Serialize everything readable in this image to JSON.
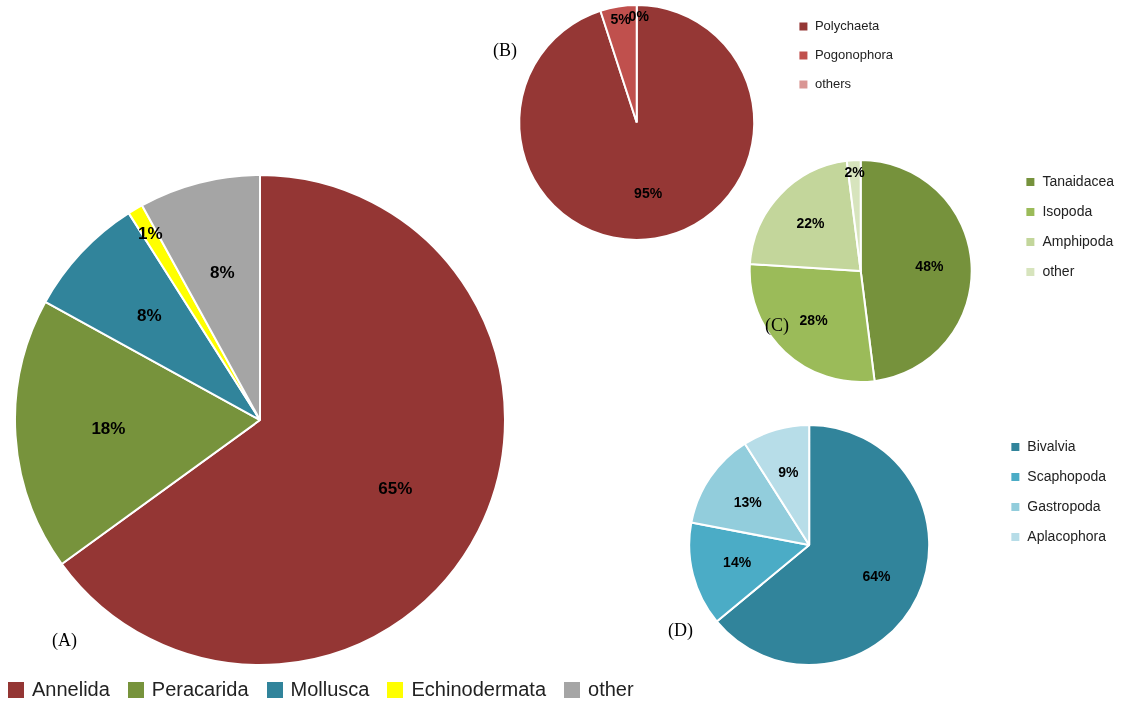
{
  "chart_data": [
    {
      "type": "pie",
      "title": "(A)",
      "categories": [
        "Annelida",
        "Peracarida",
        "Mollusca",
        "Echinodermata",
        "other"
      ],
      "values": [
        65,
        18,
        8,
        1,
        8
      ],
      "colors": [
        "#943634",
        "#77933c",
        "#31849b",
        "#ffff00",
        "#a5a5a5"
      ],
      "value_labels": [
        "65%",
        "18%",
        "8%",
        "1%",
        "8%"
      ],
      "legend": "bottom"
    },
    {
      "type": "pie",
      "title": "(B)",
      "categories": [
        "Polychaeta",
        "Pogonophora",
        "others"
      ],
      "values": [
        95,
        5,
        0
      ],
      "colors": [
        "#953735",
        "#c0504d",
        "#d99694"
      ],
      "value_labels": [
        "95%",
        "5%",
        "0%"
      ],
      "legend": "right"
    },
    {
      "type": "pie",
      "title": "(C)",
      "categories": [
        "Tanaidacea",
        "Isopoda",
        "Amphipoda",
        "other"
      ],
      "values": [
        48,
        28,
        22,
        2
      ],
      "colors": [
        "#76923c",
        "#9bbb59",
        "#c3d69b",
        "#d7e4bd"
      ],
      "value_labels": [
        "48%",
        "28%",
        "22%",
        "2%"
      ],
      "legend": "right"
    },
    {
      "type": "pie",
      "title": "(D)",
      "categories": [
        "Bivalvia",
        "Scaphopoda",
        "Gastropoda",
        "Aplacophora"
      ],
      "values": [
        64,
        14,
        13,
        9
      ],
      "colors": [
        "#31849b",
        "#4bacc6",
        "#92cddc",
        "#b7dde8"
      ],
      "value_labels": [
        "64%",
        "14%",
        "13%",
        "9%"
      ],
      "legend": "right"
    }
  ]
}
